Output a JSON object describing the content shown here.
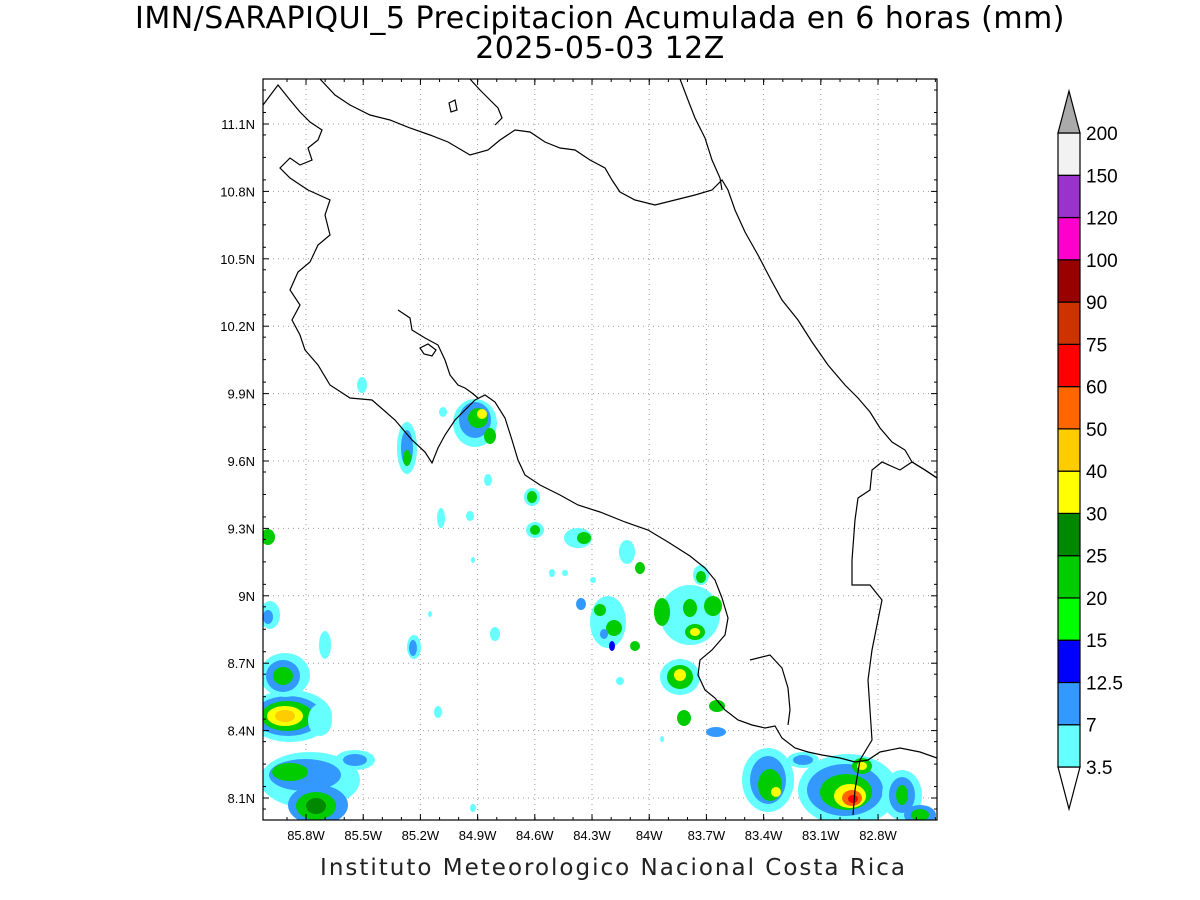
{
  "title": {
    "line1": "IMN/SARAPIQUI_5 Precipitacion Acumulada en 6 horas (mm)",
    "line2": "2025-05-03 12Z"
  },
  "footer": "Instituto Meteorologico Nacional Costa Rica",
  "map": {
    "lat_ticks": [
      "11.1N",
      "10.8N",
      "10.5N",
      "10.2N",
      "9.9N",
      "9.6N",
      "9.3N",
      "9N",
      "8.7N",
      "8.4N",
      "8.1N"
    ],
    "lon_ticks": [
      "85.8W",
      "85.5W",
      "85.2W",
      "84.9W",
      "84.6W",
      "84.3W",
      "84W",
      "83.7W",
      "83.4W",
      "83.1W",
      "82.8W"
    ],
    "grid": "dotted"
  },
  "colorbar": {
    "labels": [
      "3.5",
      "7",
      "12.5",
      "15",
      "20",
      "25",
      "30",
      "40",
      "50",
      "60",
      "75",
      "90",
      "100",
      "120",
      "150",
      "200"
    ],
    "colors": [
      "#ffffff",
      "#66ffff",
      "#3399ff",
      "#0000ff",
      "#00ff00",
      "#00cc00",
      "#008800",
      "#ffff00",
      "#ffcc00",
      "#ff6600",
      "#ff0000",
      "#cc3300",
      "#990000",
      "#ff00cc",
      "#9933cc",
      "#f2f2f2",
      "#aaaaaa"
    ]
  }
}
